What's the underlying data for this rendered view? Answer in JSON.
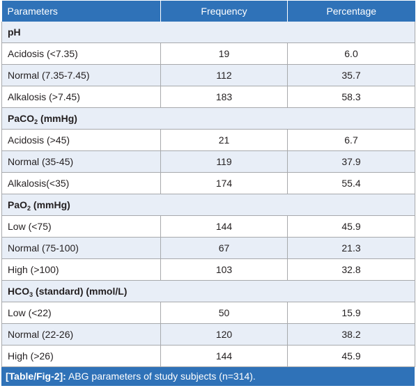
{
  "table": {
    "headers": [
      "Parameters",
      "Frequency",
      "Percentage"
    ],
    "groups": [
      {
        "title": "pH",
        "title_sub": "",
        "title_suffix": "",
        "rows": [
          {
            "label": "Acidosis (<7.35)",
            "frequency": "19",
            "percentage": "6.0"
          },
          {
            "label": "Normal (7.35-7.45)",
            "frequency": "112",
            "percentage": "35.7"
          },
          {
            "label": "Alkalosis (>7.45)",
            "frequency": "183",
            "percentage": "58.3"
          }
        ]
      },
      {
        "title": "PaCO",
        "title_sub": "2",
        "title_suffix": " (mmHg)",
        "rows": [
          {
            "label": "Acidosis (>45)",
            "frequency": "21",
            "percentage": "6.7"
          },
          {
            "label": "Normal (35-45)",
            "frequency": "119",
            "percentage": "37.9"
          },
          {
            "label": "Alkalosis(<35)",
            "frequency": "174",
            "percentage": "55.4"
          }
        ]
      },
      {
        "title": "PaO",
        "title_sub": "2",
        "title_suffix": " (mmHg)",
        "rows": [
          {
            "label": "Low (<75)",
            "frequency": "144",
            "percentage": "45.9"
          },
          {
            "label": "Normal (75-100)",
            "frequency": "67",
            "percentage": "21.3"
          },
          {
            "label": "High (>100)",
            "frequency": "103",
            "percentage": "32.8"
          }
        ]
      },
      {
        "title": "HCO",
        "title_sub": "3",
        "title_suffix": " (standard) (mmol/L)",
        "rows": [
          {
            "label": "Low (<22)",
            "frequency": "50",
            "percentage": "15.9"
          },
          {
            "label": "Normal (22-26)",
            "frequency": "120",
            "percentage": "38.2"
          },
          {
            "label": "High (>26)",
            "frequency": "144",
            "percentage": "45.9"
          }
        ]
      }
    ]
  },
  "caption": {
    "tag": "[Table/Fig-2]:",
    "text": " ABG parameters of study subjects (n=314)."
  },
  "colors": {
    "header_bg": "#2f72b8",
    "stripe_bg": "#e8eef7",
    "border": "#a7a9ac"
  }
}
